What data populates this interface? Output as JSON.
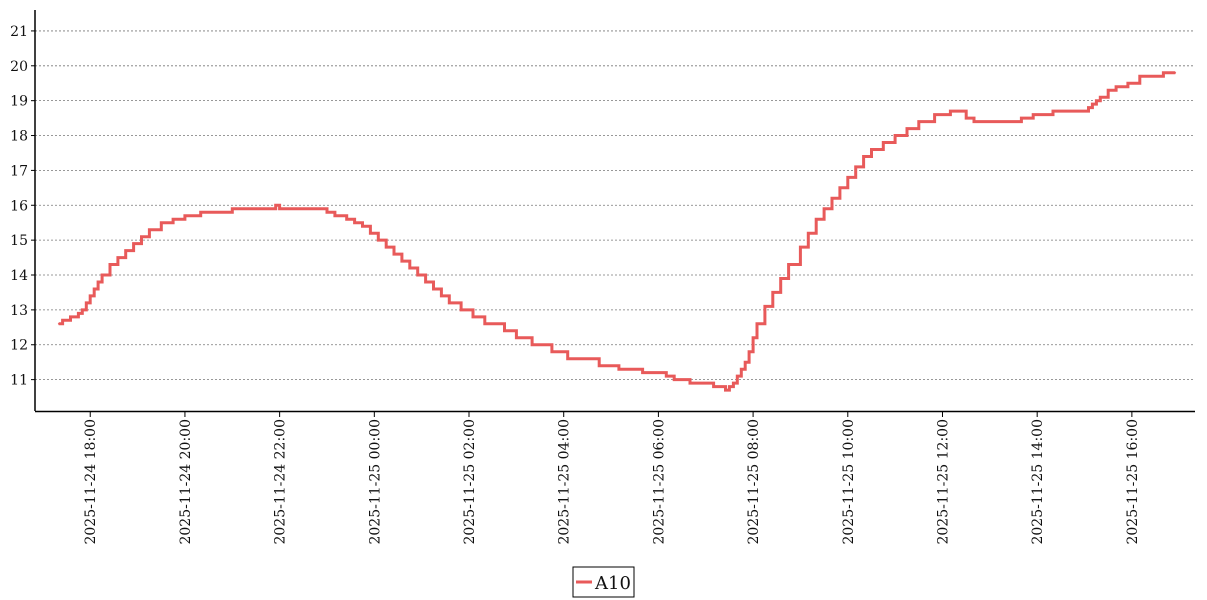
{
  "chart_data": {
    "type": "line",
    "title": "",
    "xlabel": "",
    "ylabel": "",
    "ylim": [
      10.1,
      21.6
    ],
    "xlim": [
      "2025-11-24 16:50",
      "2025-11-25 17:20"
    ],
    "y_ticks": [
      11,
      12,
      13,
      14,
      15,
      16,
      17,
      18,
      19,
      20,
      21
    ],
    "x_ticks": [
      "2025-11-24 18:00",
      "2025-11-24 20:00",
      "2025-11-24 22:00",
      "2025-11-25 00:00",
      "2025-11-25 02:00",
      "2025-11-25 04:00",
      "2025-11-25 06:00",
      "2025-11-25 08:00",
      "2025-11-25 10:00",
      "2025-11-25 12:00",
      "2025-11-25 14:00",
      "2025-11-25 16:00"
    ],
    "grid": "horizontal dotted",
    "legend_position": "bottom-center",
    "step": "post",
    "series": [
      {
        "name": "A10",
        "color": "#e85a5a",
        "x": [
          "2025-11-24 17:20",
          "2025-11-24 17:25",
          "2025-11-24 17:35",
          "2025-11-24 17:45",
          "2025-11-24 17:50",
          "2025-11-24 17:55",
          "2025-11-24 18:00",
          "2025-11-24 18:05",
          "2025-11-24 18:10",
          "2025-11-24 18:15",
          "2025-11-24 18:25",
          "2025-11-24 18:35",
          "2025-11-24 18:45",
          "2025-11-24 18:55",
          "2025-11-24 19:05",
          "2025-11-24 19:15",
          "2025-11-24 19:30",
          "2025-11-24 19:45",
          "2025-11-24 20:00",
          "2025-11-24 20:20",
          "2025-11-24 21:00",
          "2025-11-24 21:55",
          "2025-11-24 22:00",
          "2025-11-24 23:00",
          "2025-11-24 23:10",
          "2025-11-24 23:25",
          "2025-11-24 23:35",
          "2025-11-24 23:45",
          "2025-11-24 23:55",
          "2025-11-25 00:05",
          "2025-11-25 00:15",
          "2025-11-25 00:25",
          "2025-11-25 00:35",
          "2025-11-25 00:45",
          "2025-11-25 00:55",
          "2025-11-25 01:05",
          "2025-11-25 01:15",
          "2025-11-25 01:25",
          "2025-11-25 01:35",
          "2025-11-25 01:50",
          "2025-11-25 02:05",
          "2025-11-25 02:20",
          "2025-11-25 02:45",
          "2025-11-25 03:00",
          "2025-11-25 03:20",
          "2025-11-25 03:45",
          "2025-11-25 04:05",
          "2025-11-25 04:45",
          "2025-11-25 05:10",
          "2025-11-25 05:40",
          "2025-11-25 06:10",
          "2025-11-25 06:20",
          "2025-11-25 06:40",
          "2025-11-25 07:10",
          "2025-11-25 07:25",
          "2025-11-25 07:30",
          "2025-11-25 07:35",
          "2025-11-25 07:40",
          "2025-11-25 07:45",
          "2025-11-25 07:50",
          "2025-11-25 07:55",
          "2025-11-25 08:00",
          "2025-11-25 08:05",
          "2025-11-25 08:15",
          "2025-11-25 08:25",
          "2025-11-25 08:35",
          "2025-11-25 08:45",
          "2025-11-25 09:00",
          "2025-11-25 09:10",
          "2025-11-25 09:20",
          "2025-11-25 09:30",
          "2025-11-25 09:40",
          "2025-11-25 09:50",
          "2025-11-25 10:00",
          "2025-11-25 10:10",
          "2025-11-25 10:20",
          "2025-11-25 10:30",
          "2025-11-25 10:45",
          "2025-11-25 11:00",
          "2025-11-25 11:15",
          "2025-11-25 11:30",
          "2025-11-25 11:50",
          "2025-11-25 12:10",
          "2025-11-25 12:30",
          "2025-11-25 12:40",
          "2025-11-25 13:40",
          "2025-11-25 13:55",
          "2025-11-25 14:20",
          "2025-11-25 15:05",
          "2025-11-25 15:10",
          "2025-11-25 15:15",
          "2025-11-25 15:20",
          "2025-11-25 15:30",
          "2025-11-25 15:40",
          "2025-11-25 15:55",
          "2025-11-25 16:10",
          "2025-11-25 16:40",
          "2025-11-25 16:55"
        ],
        "y": [
          12.6,
          12.7,
          12.8,
          12.9,
          13.0,
          13.2,
          13.4,
          13.6,
          13.8,
          14.0,
          14.3,
          14.5,
          14.7,
          14.9,
          15.1,
          15.3,
          15.5,
          15.6,
          15.7,
          15.8,
          15.9,
          16.0,
          15.9,
          15.8,
          15.7,
          15.6,
          15.5,
          15.4,
          15.2,
          15.0,
          14.8,
          14.6,
          14.4,
          14.2,
          14.0,
          13.8,
          13.6,
          13.4,
          13.2,
          13.0,
          12.8,
          12.6,
          12.4,
          12.2,
          12.0,
          11.8,
          11.6,
          11.4,
          11.3,
          11.2,
          11.1,
          11.0,
          10.9,
          10.8,
          10.7,
          10.8,
          10.9,
          11.1,
          11.3,
          11.5,
          11.8,
          12.2,
          12.6,
          13.1,
          13.5,
          13.9,
          14.3,
          14.8,
          15.2,
          15.6,
          15.9,
          16.2,
          16.5,
          16.8,
          17.1,
          17.4,
          17.6,
          17.8,
          18.0,
          18.2,
          18.4,
          18.6,
          18.7,
          18.5,
          18.4,
          18.5,
          18.6,
          18.7,
          18.8,
          18.9,
          19.0,
          19.1,
          19.3,
          19.4,
          19.5,
          19.7,
          19.8,
          19.8
        ]
      }
    ]
  }
}
